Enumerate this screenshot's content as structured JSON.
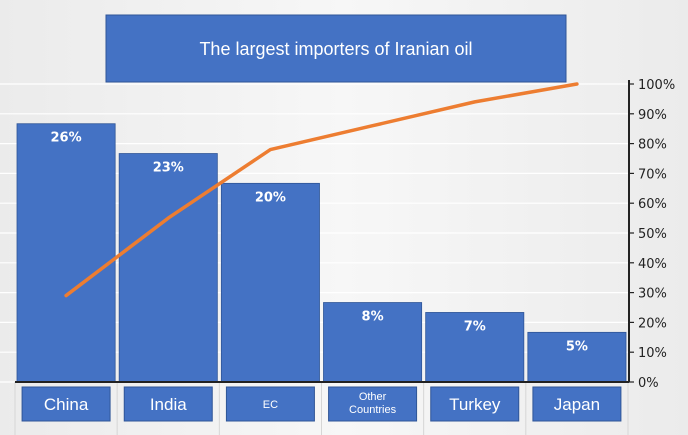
{
  "chart_data": {
    "type": "bar",
    "title": "The largest importers of Iranian oil",
    "categories": [
      "China",
      "India",
      "EC",
      "Other Countries",
      "Turkey",
      "Japan"
    ],
    "category_label_lines": [
      [
        "China"
      ],
      [
        "India"
      ],
      [
        "EC"
      ],
      [
        "Other",
        "Countries"
      ],
      [
        "Turkey"
      ],
      [
        "Japan"
      ]
    ],
    "series": [
      {
        "type": "bar",
        "values": [
          26,
          23,
          20,
          8,
          7,
          5
        ],
        "value_labels": [
          "26%",
          "23%",
          "20%",
          "8%",
          "7%",
          "5%"
        ]
      },
      {
        "type": "line",
        "values": [
          29,
          55,
          78,
          86,
          94,
          100
        ]
      }
    ],
    "y_right": {
      "min": 0,
      "max": 100,
      "ticks": [
        "0%",
        "10%",
        "20%",
        "30%",
        "40%",
        "50%",
        "60%",
        "70%",
        "80%",
        "90%",
        "100%"
      ]
    },
    "bar_scale_max": 30,
    "grid": true,
    "colors": {
      "bar": "#4472c4",
      "bar_edge": "#2f5597",
      "line": "#ed7d31",
      "title_box": "#4472c4",
      "plot_bg": "#f2f2f2",
      "grid": "#ffffff",
      "text_light": "#ffffff",
      "text_dark": "#222222"
    }
  }
}
